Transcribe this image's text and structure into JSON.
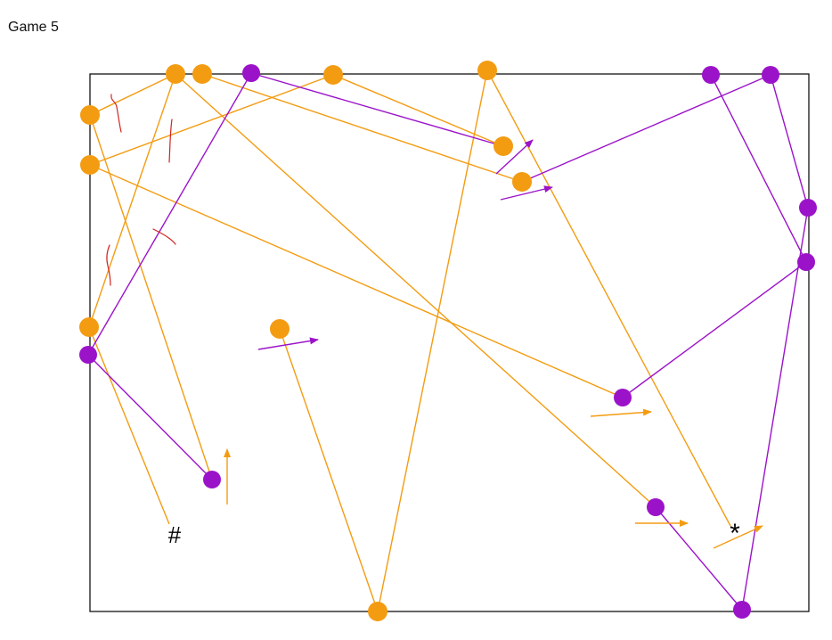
{
  "title": "Game 5",
  "markers": {
    "hash": "#",
    "star": "*"
  },
  "colors": {
    "orange": "#F39C12",
    "purple": "#9B13C9",
    "red_scribble": "#D0251F",
    "board_border": "#000000"
  }
}
